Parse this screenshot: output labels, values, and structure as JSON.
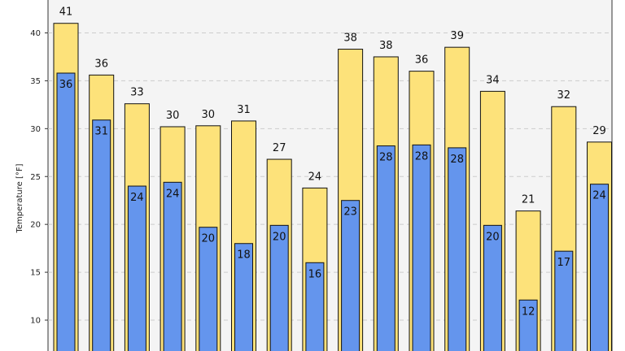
{
  "chart_data": {
    "type": "bar",
    "ylabel": "Temperature [°F]",
    "ylim": [
      7.5,
      43.5
    ],
    "yticks": [
      10,
      15,
      20,
      25,
      30,
      35,
      40
    ],
    "grid": "horizontal-dashed",
    "categories": [
      "",
      "",
      "",
      "",
      "",
      "",
      "",
      "",
      "",
      "",
      "",
      "",
      "",
      "",
      "",
      ""
    ],
    "series": [
      {
        "values": [
          41,
          35.6,
          32.6,
          30.2,
          30.3,
          30.8,
          26.8,
          23.8,
          38.3,
          37.5,
          36,
          38.5,
          33.9,
          21.4,
          32.3,
          28.6
        ],
        "labels": [
          "41",
          "36",
          "33",
          "30",
          "30",
          "31",
          "27",
          "24",
          "38",
          "38",
          "36",
          "39",
          "34",
          "21",
          "32",
          "29"
        ],
        "color": "#fde27a"
      },
      {
        "values": [
          35.8,
          30.9,
          24,
          24.4,
          19.7,
          18,
          19.9,
          16,
          22.5,
          28.2,
          28.3,
          28,
          19.9,
          12.1,
          17.2,
          24.2
        ],
        "labels": [
          "36",
          "31",
          "24",
          "24",
          "20",
          "18",
          "20",
          "16",
          "23",
          "28",
          "28",
          "28",
          "20",
          "12",
          "17",
          "24"
        ],
        "color": "#6495ed"
      }
    ],
    "colors": {
      "plot_background": "#f4f4f4",
      "edge": "#111111",
      "grid": "#cccccc"
    }
  }
}
